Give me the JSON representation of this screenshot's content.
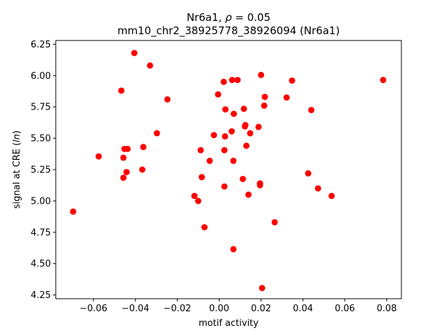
{
  "chart_data": {
    "type": "scatter",
    "title_line1_prefix": "Nr6a1, ",
    "title_line1_rho": "ρ",
    "title_line1_suffix": " = 0.05",
    "title_line2": "mm10_chr2_38925778_38926094 (Nr6a1)",
    "xlabel": "motif activity",
    "ylabel_prefix": "signal at CRE (",
    "ylabel_italic": "ln",
    "ylabel_suffix": ")",
    "xlim": [
      -0.078,
      0.087
    ],
    "ylim": [
      4.22,
      6.28
    ],
    "xticks": [
      -0.06,
      -0.04,
      -0.02,
      0.0,
      0.02,
      0.04,
      0.06,
      0.08
    ],
    "xtick_labels": [
      "−0.06",
      "−0.04",
      "−0.02",
      "0.00",
      "0.02",
      "0.04",
      "0.06",
      "0.08"
    ],
    "yticks": [
      4.25,
      4.5,
      4.75,
      5.0,
      5.25,
      5.5,
      5.75,
      6.0,
      6.25
    ],
    "ytick_labels": [
      "4.25",
      "4.50",
      "4.75",
      "5.00",
      "5.25",
      "5.50",
      "5.75",
      "6.00",
      "6.25"
    ],
    "grid": false,
    "marker_color": "#ff0000",
    "points": [
      [
        -0.0697,
        4.915
      ],
      [
        -0.0575,
        5.355
      ],
      [
        -0.0467,
        5.88
      ],
      [
        -0.0457,
        5.345
      ],
      [
        -0.0457,
        5.185
      ],
      [
        -0.0452,
        5.415
      ],
      [
        -0.0442,
        5.23
      ],
      [
        -0.0437,
        5.415
      ],
      [
        -0.0405,
        6.18
      ],
      [
        -0.0367,
        5.25
      ],
      [
        -0.0362,
        5.43
      ],
      [
        -0.033,
        6.08
      ],
      [
        -0.0297,
        5.54
      ],
      [
        -0.0247,
        5.81
      ],
      [
        -0.0118,
        5.04
      ],
      [
        -0.01,
        5.0
      ],
      [
        -0.0088,
        5.405
      ],
      [
        -0.0083,
        5.19
      ],
      [
        -0.007,
        4.79
      ],
      [
        -0.0045,
        5.32
      ],
      [
        -0.0025,
        5.525
      ],
      [
        -0.0005,
        5.85
      ],
      [
        0.0022,
        5.95
      ],
      [
        0.0025,
        5.115
      ],
      [
        0.0025,
        5.405
      ],
      [
        0.0028,
        5.515
      ],
      [
        0.003,
        5.73
      ],
      [
        0.006,
        5.555
      ],
      [
        0.0062,
        5.965
      ],
      [
        0.0068,
        5.32
      ],
      [
        0.0068,
        4.615
      ],
      [
        0.007,
        5.695
      ],
      [
        0.0088,
        5.965
      ],
      [
        0.0113,
        5.175
      ],
      [
        0.0118,
        5.735
      ],
      [
        0.0123,
        5.595
      ],
      [
        0.0125,
        5.605
      ],
      [
        0.013,
        5.44
      ],
      [
        0.014,
        5.05
      ],
      [
        0.0148,
        5.54
      ],
      [
        0.0188,
        5.59
      ],
      [
        0.0195,
        5.14
      ],
      [
        0.0195,
        5.125
      ],
      [
        0.02,
        6.005
      ],
      [
        0.0205,
        4.305
      ],
      [
        0.0215,
        5.76
      ],
      [
        0.0218,
        5.83
      ],
      [
        0.0265,
        4.83
      ],
      [
        0.0322,
        5.825
      ],
      [
        0.0348,
        5.96
      ],
      [
        0.0425,
        5.22
      ],
      [
        0.044,
        5.725
      ],
      [
        0.0472,
        5.1
      ],
      [
        0.0537,
        5.04
      ],
      [
        0.0783,
        5.965
      ]
    ]
  }
}
